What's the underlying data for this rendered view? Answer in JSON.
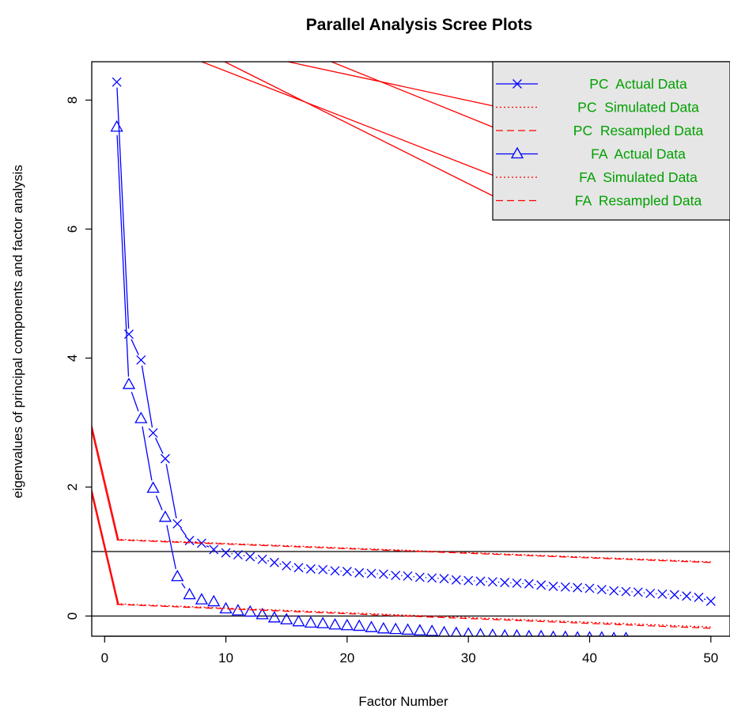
{
  "chart_data": {
    "type": "line",
    "title": "Parallel Analysis Scree Plots",
    "xlabel": "Factor Number",
    "ylabel": "eigenvalues of principal components and factor analysis",
    "xlim": [
      -1,
      51
    ],
    "ylim": [
      -0.35,
      8.6
    ],
    "xticks": [
      0,
      10,
      20,
      30,
      40,
      50
    ],
    "yticks": [
      0,
      2,
      4,
      6,
      8
    ],
    "reference_lines": [
      1,
      0
    ],
    "legend_position": "top-right",
    "colors": {
      "actual": "#0000ff",
      "simulated": "#ff0000",
      "legend_text": "#00a000",
      "legend_bg": "#e6e6e6"
    },
    "series": [
      {
        "name": "PC  Actual Data",
        "color": "#0000ff",
        "line": "solid",
        "marker": "x",
        "x": [
          1,
          2,
          3,
          4,
          5,
          6,
          7,
          8,
          9,
          10,
          11,
          12,
          13,
          14,
          15,
          16,
          17,
          18,
          19,
          20,
          21,
          22,
          23,
          24,
          25,
          26,
          27,
          28,
          29,
          30,
          31,
          32,
          33,
          34,
          35,
          36,
          37,
          38,
          39,
          40,
          41,
          42,
          43,
          44,
          45,
          46,
          47,
          48,
          49,
          50
        ],
        "values": [
          8.28,
          4.37,
          3.97,
          2.84,
          2.44,
          1.43,
          1.17,
          1.13,
          1.03,
          0.98,
          0.95,
          0.92,
          0.88,
          0.83,
          0.78,
          0.75,
          0.73,
          0.72,
          0.7,
          0.69,
          0.67,
          0.66,
          0.65,
          0.63,
          0.62,
          0.6,
          0.59,
          0.58,
          0.56,
          0.55,
          0.54,
          0.53,
          0.52,
          0.51,
          0.5,
          0.48,
          0.46,
          0.45,
          0.44,
          0.43,
          0.41,
          0.39,
          0.38,
          0.37,
          0.35,
          0.34,
          0.33,
          0.31,
          0.29,
          0.23
        ]
      },
      {
        "name": "PC  Simulated Data",
        "color": "#ff0000",
        "line": "dotted",
        "x": [
          1,
          50
        ],
        "values": [
          1.19,
          0.84
        ]
      },
      {
        "name": "PC  Resampled Data",
        "color": "#ff0000",
        "line": "dashed",
        "x": [
          1,
          50
        ],
        "values": [
          1.18,
          0.83
        ]
      },
      {
        "name": "FA  Actual Data",
        "color": "#0000ff",
        "line": "solid",
        "marker": "triangle",
        "x": [
          1,
          2,
          3,
          4,
          5,
          6,
          7,
          8,
          9,
          10,
          11,
          12,
          13,
          14,
          15,
          16,
          17,
          18,
          19,
          20,
          21,
          22,
          23,
          24,
          25,
          26,
          27,
          28,
          29,
          30,
          31,
          32,
          33,
          34,
          35,
          36,
          37,
          38,
          39,
          40,
          41,
          42,
          43
        ],
        "values": [
          7.58,
          3.59,
          3.06,
          1.98,
          1.53,
          0.61,
          0.33,
          0.25,
          0.22,
          0.11,
          0.08,
          0.06,
          0.02,
          -0.03,
          -0.06,
          -0.09,
          -0.11,
          -0.12,
          -0.14,
          -0.15,
          -0.16,
          -0.18,
          -0.2,
          -0.21,
          -0.22,
          -0.23,
          -0.24,
          -0.26,
          -0.27,
          -0.28,
          -0.29,
          -0.3,
          -0.31,
          -0.31,
          -0.32,
          -0.32,
          -0.33,
          -0.33,
          -0.34,
          -0.34,
          -0.34,
          -0.35,
          -0.35
        ]
      },
      {
        "name": "FA  Simulated Data",
        "color": "#ff0000",
        "line": "dotted",
        "x": [
          1,
          50
        ],
        "values": [
          0.19,
          -0.17
        ]
      },
      {
        "name": "FA  Resampled Data",
        "color": "#ff0000",
        "line": "dashed",
        "x": [
          1,
          50
        ],
        "values": [
          0.18,
          -0.19
        ]
      }
    ]
  }
}
